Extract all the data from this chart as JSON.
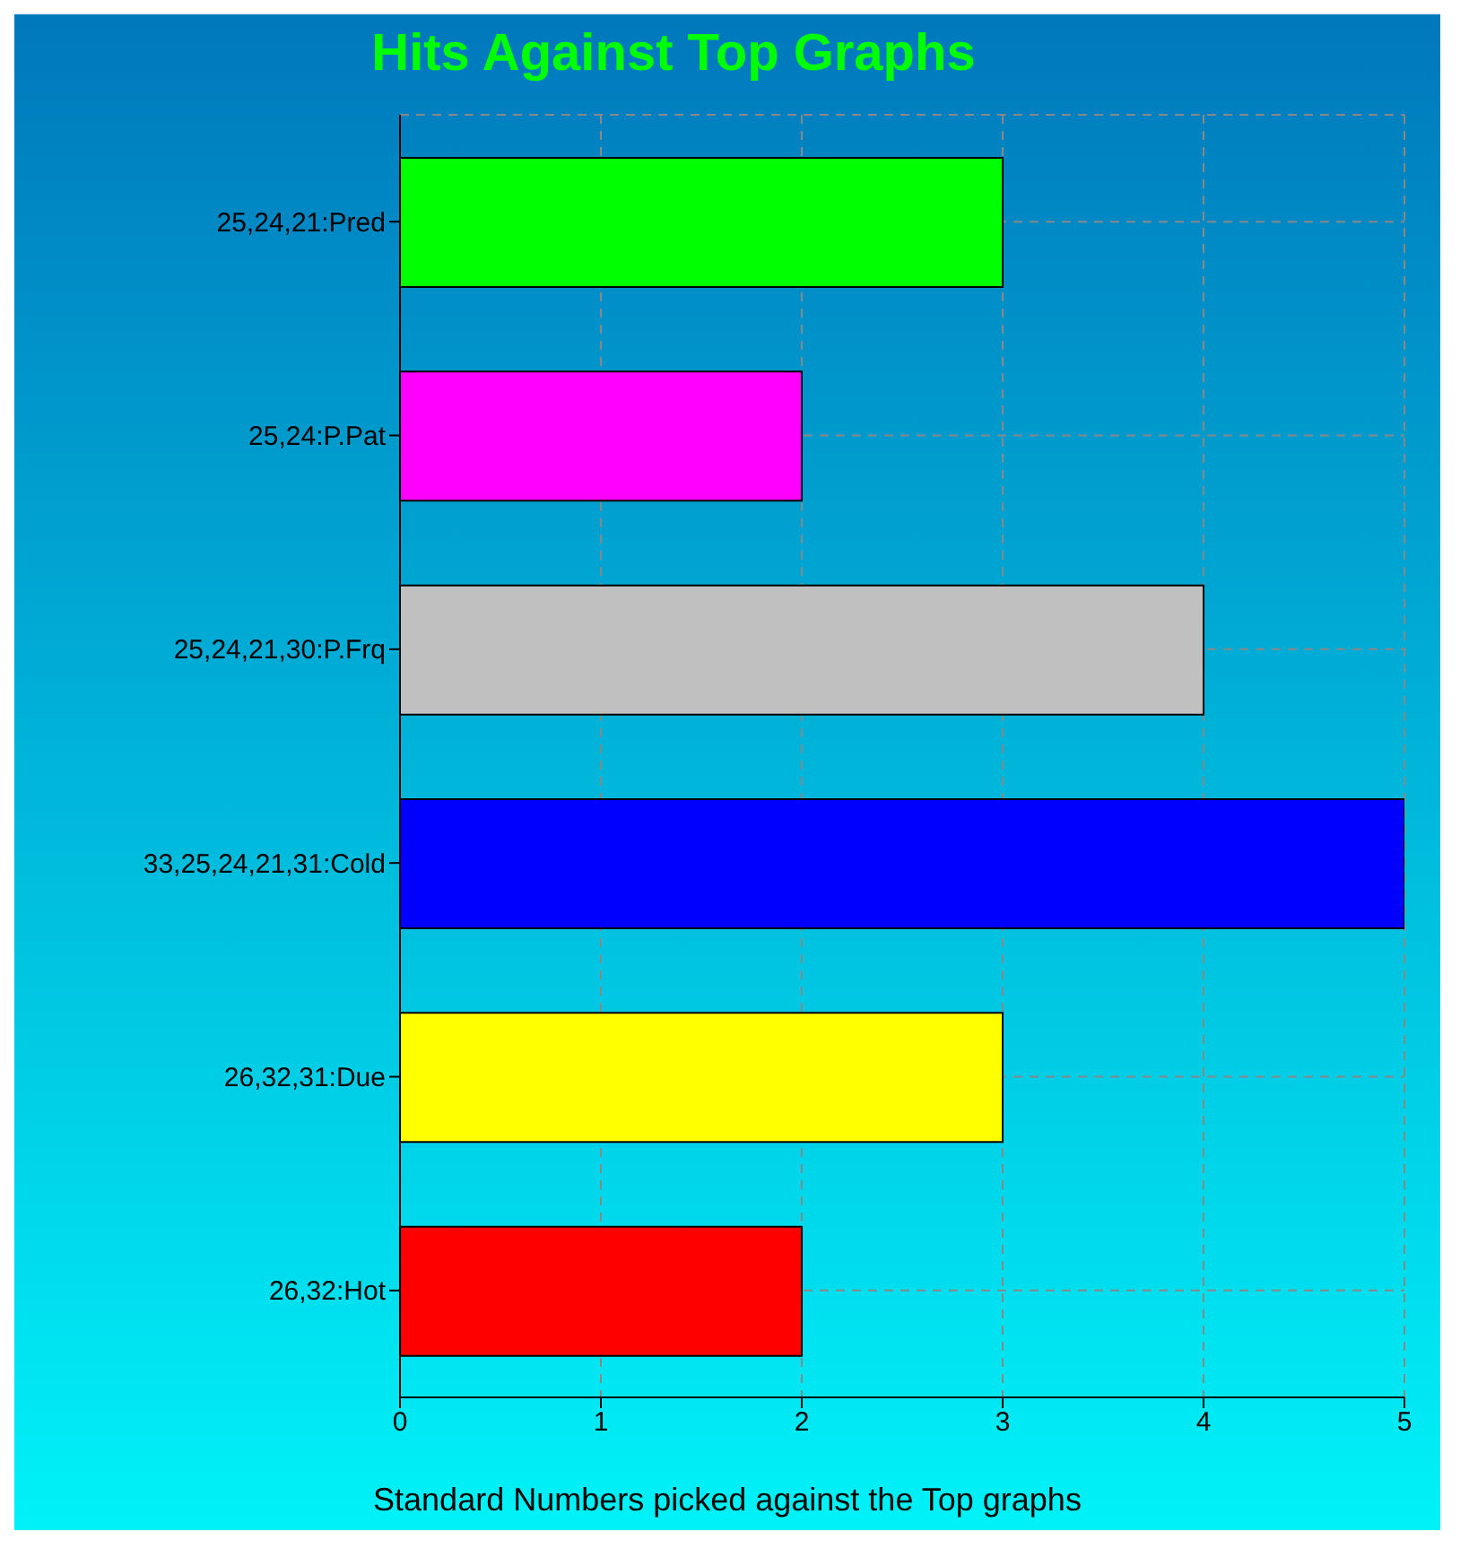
{
  "chart_data": {
    "type": "bar",
    "orientation": "horizontal",
    "title": "Hits Against Top Graphs",
    "xlabel": "Standard Numbers picked against the Top graphs",
    "categories": [
      "25,24,21:Pred",
      "25,24:P.Pat",
      "25,24,21,30:P.Frq",
      "33,25,24,21,31:Cold",
      "26,32,31:Due",
      "26,32:Hot"
    ],
    "values": [
      3,
      2,
      4,
      5,
      3,
      2
    ],
    "colors": [
      "#00ff00",
      "#ff00ff",
      "#c0c0c0",
      "#0000ff",
      "#ffff00",
      "#ff0000"
    ],
    "xlim": [
      0,
      5
    ],
    "xticks": [
      0,
      1,
      2,
      3,
      4,
      5
    ],
    "grid": true
  }
}
